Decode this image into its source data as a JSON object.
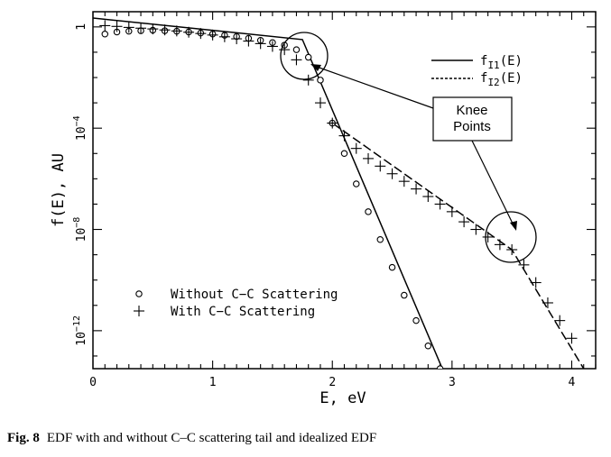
{
  "chart_data": {
    "type": "scatter",
    "title": "",
    "xlabel": "E, eV",
    "ylabel": "f(E), AU",
    "xlim": [
      0,
      4.2
    ],
    "ylog": true,
    "ylim_exp": [
      -13.5,
      0.6
    ],
    "grid": false,
    "x_ticks": [
      "0",
      "1",
      "2",
      "3",
      "4"
    ],
    "y_tick_labels": [
      {
        "base": "1",
        "exp": "",
        "value_exp": 0
      },
      {
        "base": "10",
        "exp": "−4",
        "value_exp": -4
      },
      {
        "base": "10",
        "exp": "−8",
        "value_exp": -8
      },
      {
        "base": "10",
        "exp": "−12",
        "value_exp": -12
      }
    ],
    "series": [
      {
        "name": "Without C−C Scattering",
        "marker": "circle",
        "x": [
          0.1,
          0.2,
          0.3,
          0.4,
          0.5,
          0.6,
          0.7,
          0.8,
          0.9,
          1.0,
          1.1,
          1.2,
          1.3,
          1.4,
          1.5,
          1.6,
          1.7,
          1.8,
          1.9,
          2.0,
          2.1,
          2.2,
          2.3,
          2.4,
          2.5,
          2.6,
          2.7,
          2.8,
          2.9,
          3.0
        ],
        "log10_y": [
          -0.28,
          -0.2,
          -0.17,
          -0.15,
          -0.13,
          -0.15,
          -0.17,
          -0.2,
          -0.24,
          -0.28,
          -0.33,
          -0.38,
          -0.45,
          -0.53,
          -0.62,
          -0.72,
          -0.9,
          -1.2,
          -2.1,
          -3.8,
          -5.0,
          -6.2,
          -7.3,
          -8.4,
          -9.5,
          -10.6,
          -11.6,
          -12.6,
          -13.5,
          -14.4
        ]
      },
      {
        "name": "With C−C Scattering",
        "marker": "plus",
        "x": [
          0.1,
          0.2,
          0.3,
          0.4,
          0.5,
          0.6,
          0.7,
          0.8,
          0.9,
          1.0,
          1.1,
          1.2,
          1.3,
          1.4,
          1.5,
          1.6,
          1.7,
          1.8,
          1.9,
          2.0,
          2.1,
          2.2,
          2.3,
          2.4,
          2.5,
          2.6,
          2.7,
          2.8,
          2.9,
          3.0,
          3.1,
          3.2,
          3.3,
          3.4,
          3.5,
          3.6,
          3.7,
          3.8,
          3.9,
          4.0
        ],
        "log10_y": [
          0.05,
          0.02,
          -0.02,
          -0.05,
          -0.08,
          -0.12,
          -0.16,
          -0.21,
          -0.26,
          -0.32,
          -0.39,
          -0.47,
          -0.56,
          -0.66,
          -0.77,
          -0.9,
          -1.3,
          -2.1,
          -3.0,
          -3.8,
          -4.3,
          -4.8,
          -5.2,
          -5.5,
          -5.8,
          -6.1,
          -6.4,
          -6.7,
          -7.0,
          -7.3,
          -7.7,
          -8.0,
          -8.3,
          -8.6,
          -8.8,
          -9.4,
          -10.1,
          -10.9,
          -11.6,
          -12.3
        ]
      }
    ],
    "curves": [
      {
        "name": "f_I1(E)",
        "style": "solid",
        "x": [
          0,
          1.75,
          3.0
        ],
        "log10_y": [
          0.35,
          -0.5,
          -14.4
        ]
      },
      {
        "name": "f_I2(E)",
        "style": "dashed",
        "x": [
          2.0,
          3.5,
          4.1
        ],
        "log10_y": [
          -3.8,
          -8.8,
          -13.5
        ]
      }
    ],
    "legend": {
      "placement": "top-right",
      "entries": [
        {
          "style": "solid",
          "base": "f",
          "sub": "I1",
          "tail": "(E)"
        },
        {
          "style": "dashed",
          "base": "f",
          "sub": "I2",
          "tail": "(E)"
        }
      ]
    },
    "marker_legend": {
      "placement": "bottom-left",
      "entries": [
        "Without C−C Scattering",
        "With C−C Scattering"
      ]
    },
    "annotation": {
      "text_lines": [
        "Knee",
        "Points"
      ],
      "circled_points": [
        {
          "x": 1.75,
          "log10_y": -0.8
        },
        {
          "x": 3.5,
          "log10_y": -8.8
        }
      ]
    }
  },
  "caption": {
    "label": "Fig. 8",
    "text": "EDF with and without C–C scattering tail and idealized EDF"
  }
}
